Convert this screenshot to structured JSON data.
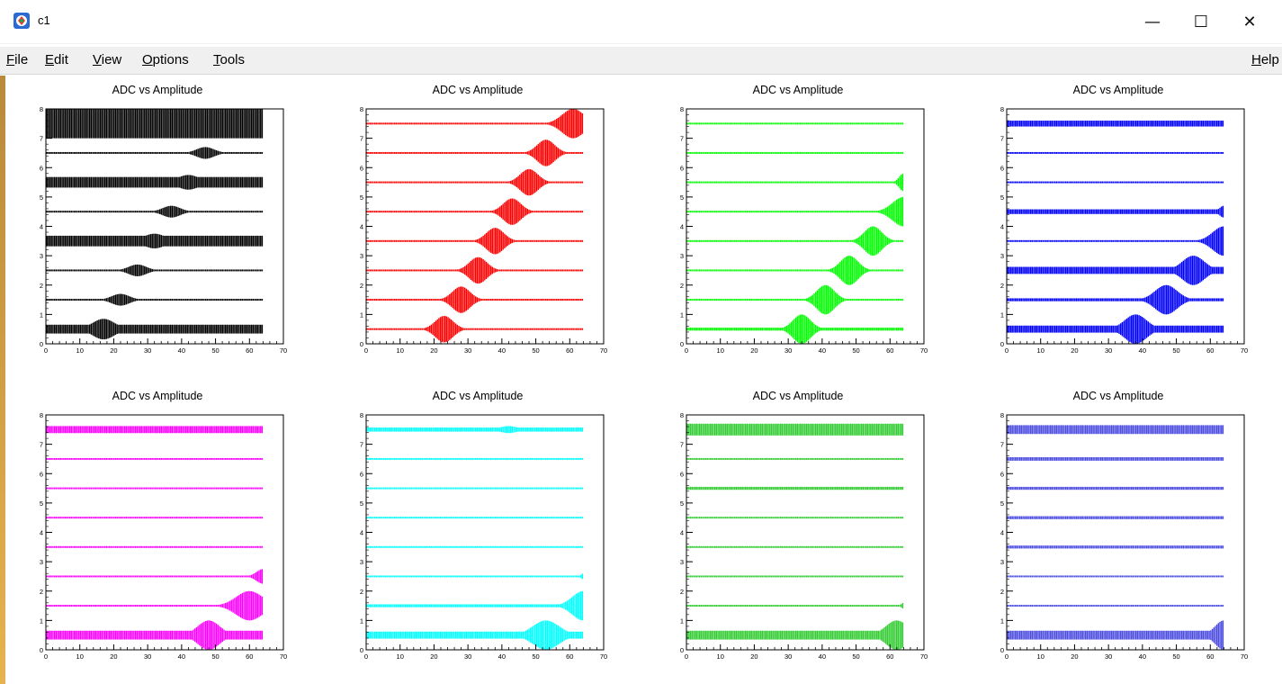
{
  "window": {
    "title": "c1",
    "icon": "root-app-icon",
    "controls": {
      "minimize": "—",
      "maximize": "☐",
      "close": "✕"
    }
  },
  "menu": {
    "left": [
      {
        "label": "File",
        "accel": "F"
      },
      {
        "label": "Edit",
        "accel": "E"
      },
      {
        "label": "View",
        "accel": "V"
      },
      {
        "label": "Options",
        "accel": "O"
      },
      {
        "label": "Tools",
        "accel": "T"
      }
    ],
    "right": {
      "label": "Help",
      "accel": "H"
    }
  },
  "colors": {
    "pad1": "#000000",
    "pad2": "#ff0000",
    "pad3": "#00ff00",
    "pad4": "#0000ff",
    "pad5": "#ff00ff",
    "pad6": "#00ffff",
    "pad7": "#33cc33",
    "pad8": "#4c4ce0"
  },
  "chart_data": [
    {
      "type": "scatter",
      "title": "ADC vs Amplitude",
      "xlim": [
        0,
        70
      ],
      "ylim": [
        0,
        8
      ],
      "xticks": [
        0,
        10,
        20,
        30,
        40,
        50,
        60,
        70
      ],
      "yticks": [
        0,
        1,
        2,
        3,
        4,
        5,
        6,
        7,
        8
      ],
      "color": "#000000",
      "x_end": 64,
      "bands": [
        {
          "y": 0.5,
          "hump_x": 17,
          "hump_w": 5,
          "hump_h": 0.35,
          "base_h": 0.15
        },
        {
          "y": 1.5,
          "hump_x": 22,
          "hump_w": 4,
          "hump_h": 0.2,
          "base_h": 0.03
        },
        {
          "y": 2.5,
          "hump_x": 27,
          "hump_w": 4,
          "hump_h": 0.2,
          "base_h": 0.03
        },
        {
          "y": 3.5,
          "hump_x": 32,
          "hump_w": 5,
          "hump_h": 0.25,
          "base_h": 0.18
        },
        {
          "y": 4.5,
          "hump_x": 37,
          "hump_w": 4,
          "hump_h": 0.2,
          "base_h": 0.03
        },
        {
          "y": 5.5,
          "hump_x": 42,
          "hump_w": 5,
          "hump_h": 0.25,
          "base_h": 0.18
        },
        {
          "y": 6.5,
          "hump_x": 47,
          "hump_w": 4,
          "hump_h": 0.2,
          "base_h": 0.03
        },
        {
          "y": 7.5,
          "hump_x": 50,
          "hump_w": 8,
          "hump_h": 0.5,
          "base_h": 0.5
        }
      ]
    },
    {
      "type": "scatter",
      "title": "ADC vs Amplitude",
      "xlim": [
        0,
        70
      ],
      "ylim": [
        0,
        8
      ],
      "xticks": [
        0,
        10,
        20,
        30,
        40,
        50,
        60,
        70
      ],
      "yticks": [
        0,
        1,
        2,
        3,
        4,
        5,
        6,
        7,
        8
      ],
      "color": "#ff0000",
      "x_end": 64,
      "bands": [
        {
          "y": 0.5,
          "hump_x": 23,
          "hump_w": 4,
          "hump_h": 0.45,
          "base_h": 0.03
        },
        {
          "y": 1.5,
          "hump_x": 28,
          "hump_w": 4,
          "hump_h": 0.45,
          "base_h": 0.03
        },
        {
          "y": 2.5,
          "hump_x": 33,
          "hump_w": 4,
          "hump_h": 0.45,
          "base_h": 0.03
        },
        {
          "y": 3.5,
          "hump_x": 38,
          "hump_w": 4,
          "hump_h": 0.45,
          "base_h": 0.03
        },
        {
          "y": 4.5,
          "hump_x": 43,
          "hump_w": 4,
          "hump_h": 0.45,
          "base_h": 0.03
        },
        {
          "y": 5.5,
          "hump_x": 48,
          "hump_w": 4,
          "hump_h": 0.45,
          "base_h": 0.03
        },
        {
          "y": 6.5,
          "hump_x": 53,
          "hump_w": 4,
          "hump_h": 0.45,
          "base_h": 0.03
        },
        {
          "y": 7.5,
          "hump_x": 61,
          "hump_w": 5,
          "hump_h": 0.5,
          "base_h": 0.03
        }
      ]
    },
    {
      "type": "scatter",
      "title": "ADC vs Amplitude",
      "xlim": [
        0,
        70
      ],
      "ylim": [
        0,
        8
      ],
      "xticks": [
        0,
        10,
        20,
        30,
        40,
        50,
        60,
        70
      ],
      "yticks": [
        0,
        1,
        2,
        3,
        4,
        5,
        6,
        7,
        8
      ],
      "color": "#00ff00",
      "x_end": 64,
      "bands": [
        {
          "y": 0.5,
          "hump_x": 34,
          "hump_w": 4,
          "hump_h": 0.5,
          "base_h": 0.05
        },
        {
          "y": 1.5,
          "hump_x": 41,
          "hump_w": 4,
          "hump_h": 0.5,
          "base_h": 0.03
        },
        {
          "y": 2.5,
          "hump_x": 48,
          "hump_w": 4,
          "hump_h": 0.5,
          "base_h": 0.03
        },
        {
          "y": 3.5,
          "hump_x": 55,
          "hump_w": 4,
          "hump_h": 0.5,
          "base_h": 0.03
        },
        {
          "y": 4.5,
          "hump_x": 64,
          "hump_w": 5,
          "hump_h": 0.5,
          "base_h": 0.03
        },
        {
          "y": 5.5,
          "hump_x": 64,
          "hump_w": 2,
          "hump_h": 0.3,
          "base_h": 0.03
        },
        {
          "y": 6.5,
          "hump_x": 0,
          "hump_w": 0,
          "hump_h": 0,
          "base_h": 0.03
        },
        {
          "y": 7.5,
          "hump_x": 0,
          "hump_w": 0,
          "hump_h": 0,
          "base_h": 0.03
        }
      ]
    },
    {
      "type": "scatter",
      "title": "ADC vs Amplitude",
      "xlim": [
        0,
        70
      ],
      "ylim": [
        0,
        8
      ],
      "xticks": [
        0,
        10,
        20,
        30,
        40,
        50,
        60,
        70
      ],
      "yticks": [
        0,
        1,
        2,
        3,
        4,
        5,
        6,
        7,
        8
      ],
      "color": "#0000ff",
      "x_end": 64,
      "bands": [
        {
          "y": 0.5,
          "hump_x": 38,
          "hump_w": 5,
          "hump_h": 0.5,
          "base_h": 0.12
        },
        {
          "y": 1.5,
          "hump_x": 47,
          "hump_w": 5,
          "hump_h": 0.5,
          "base_h": 0.05
        },
        {
          "y": 2.5,
          "hump_x": 55,
          "hump_w": 5,
          "hump_h": 0.5,
          "base_h": 0.12
        },
        {
          "y": 3.5,
          "hump_x": 64,
          "hump_w": 5,
          "hump_h": 0.5,
          "base_h": 0.03
        },
        {
          "y": 4.5,
          "hump_x": 64,
          "hump_w": 2,
          "hump_h": 0.2,
          "base_h": 0.08
        },
        {
          "y": 5.5,
          "hump_x": 0,
          "hump_w": 0,
          "hump_h": 0,
          "base_h": 0.03
        },
        {
          "y": 6.5,
          "hump_x": 0,
          "hump_w": 0,
          "hump_h": 0,
          "base_h": 0.03
        },
        {
          "y": 7.5,
          "hump_x": 0,
          "hump_w": 0,
          "hump_h": 0,
          "base_h": 0.1
        }
      ]
    },
    {
      "type": "scatter",
      "title": "ADC vs Amplitude",
      "xlim": [
        0,
        70
      ],
      "ylim": [
        0,
        8
      ],
      "xticks": [
        0,
        10,
        20,
        30,
        40,
        50,
        60,
        70
      ],
      "yticks": [
        0,
        1,
        2,
        3,
        4,
        5,
        6,
        7,
        8
      ],
      "color": "#ff00ff",
      "x_end": 64,
      "bands": [
        {
          "y": 0.5,
          "hump_x": 48,
          "hump_w": 5,
          "hump_h": 0.5,
          "base_h": 0.15
        },
        {
          "y": 1.5,
          "hump_x": 60,
          "hump_w": 6,
          "hump_h": 0.5,
          "base_h": 0.03
        },
        {
          "y": 2.5,
          "hump_x": 64,
          "hump_w": 3,
          "hump_h": 0.25,
          "base_h": 0.03
        },
        {
          "y": 3.5,
          "hump_x": 0,
          "hump_w": 0,
          "hump_h": 0,
          "base_h": 0.03
        },
        {
          "y": 4.5,
          "hump_x": 0,
          "hump_w": 0,
          "hump_h": 0,
          "base_h": 0.03
        },
        {
          "y": 5.5,
          "hump_x": 0,
          "hump_w": 0,
          "hump_h": 0,
          "base_h": 0.03
        },
        {
          "y": 6.5,
          "hump_x": 0,
          "hump_w": 0,
          "hump_h": 0,
          "base_h": 0.03
        },
        {
          "y": 7.5,
          "hump_x": 0,
          "hump_w": 0,
          "hump_h": 0,
          "base_h": 0.12
        }
      ]
    },
    {
      "type": "scatter",
      "title": "ADC vs Amplitude",
      "xlim": [
        0,
        70
      ],
      "ylim": [
        0,
        8
      ],
      "xticks": [
        0,
        10,
        20,
        30,
        40,
        50,
        60,
        70
      ],
      "yticks": [
        0,
        1,
        2,
        3,
        4,
        5,
        6,
        7,
        8
      ],
      "color": "#00ffff",
      "x_end": 64,
      "bands": [
        {
          "y": 0.5,
          "hump_x": 53,
          "hump_w": 6,
          "hump_h": 0.5,
          "base_h": 0.12
        },
        {
          "y": 1.5,
          "hump_x": 64,
          "hump_w": 5,
          "hump_h": 0.5,
          "base_h": 0.05
        },
        {
          "y": 2.5,
          "hump_x": 64,
          "hump_w": 1,
          "hump_h": 0.1,
          "base_h": 0.03
        },
        {
          "y": 3.5,
          "hump_x": 0,
          "hump_w": 0,
          "hump_h": 0,
          "base_h": 0.03
        },
        {
          "y": 4.5,
          "hump_x": 0,
          "hump_w": 0,
          "hump_h": 0,
          "base_h": 0.03
        },
        {
          "y": 5.5,
          "hump_x": 0,
          "hump_w": 0,
          "hump_h": 0,
          "base_h": 0.03
        },
        {
          "y": 6.5,
          "hump_x": 0,
          "hump_w": 0,
          "hump_h": 0,
          "base_h": 0.03
        },
        {
          "y": 7.5,
          "hump_x": 42,
          "hump_w": 4,
          "hump_h": 0.12,
          "base_h": 0.07
        }
      ]
    },
    {
      "type": "scatter",
      "title": "ADC vs Amplitude",
      "xlim": [
        0,
        70
      ],
      "ylim": [
        0,
        8
      ],
      "xticks": [
        0,
        10,
        20,
        30,
        40,
        50,
        60,
        70
      ],
      "yticks": [
        0,
        1,
        2,
        3,
        4,
        5,
        6,
        7,
        8
      ],
      "color": "#33cc33",
      "x_end": 64,
      "bands": [
        {
          "y": 0.5,
          "hump_x": 62,
          "hump_w": 5,
          "hump_h": 0.5,
          "base_h": 0.15
        },
        {
          "y": 1.5,
          "hump_x": 64,
          "hump_w": 1,
          "hump_h": 0.1,
          "base_h": 0.03
        },
        {
          "y": 2.5,
          "hump_x": 0,
          "hump_w": 0,
          "hump_h": 0,
          "base_h": 0.03
        },
        {
          "y": 3.5,
          "hump_x": 0,
          "hump_w": 0,
          "hump_h": 0,
          "base_h": 0.03
        },
        {
          "y": 4.5,
          "hump_x": 0,
          "hump_w": 0,
          "hump_h": 0,
          "base_h": 0.03
        },
        {
          "y": 5.5,
          "hump_x": 0,
          "hump_w": 0,
          "hump_h": 0,
          "base_h": 0.05
        },
        {
          "y": 6.5,
          "hump_x": 0,
          "hump_w": 0,
          "hump_h": 0,
          "base_h": 0.03
        },
        {
          "y": 7.5,
          "hump_x": 0,
          "hump_w": 0,
          "hump_h": 0,
          "base_h": 0.2
        }
      ]
    },
    {
      "type": "scatter",
      "title": "ADC vs Amplitude",
      "xlim": [
        0,
        70
      ],
      "ylim": [
        0,
        8
      ],
      "xticks": [
        0,
        10,
        20,
        30,
        40,
        50,
        60,
        70
      ],
      "yticks": [
        0,
        1,
        2,
        3,
        4,
        5,
        6,
        7,
        8
      ],
      "color": "#4c4ce0",
      "x_end": 64,
      "bands": [
        {
          "y": 0.5,
          "hump_x": 64,
          "hump_w": 4,
          "hump_h": 0.5,
          "base_h": 0.15
        },
        {
          "y": 1.5,
          "hump_x": 0,
          "hump_w": 0,
          "hump_h": 0,
          "base_h": 0.03
        },
        {
          "y": 2.5,
          "hump_x": 0,
          "hump_w": 0,
          "hump_h": 0,
          "base_h": 0.03
        },
        {
          "y": 3.5,
          "hump_x": 0,
          "hump_w": 0,
          "hump_h": 0,
          "base_h": 0.05
        },
        {
          "y": 4.5,
          "hump_x": 0,
          "hump_w": 0,
          "hump_h": 0,
          "base_h": 0.05
        },
        {
          "y": 5.5,
          "hump_x": 0,
          "hump_w": 0,
          "hump_h": 0,
          "base_h": 0.05
        },
        {
          "y": 6.5,
          "hump_x": 0,
          "hump_w": 0,
          "hump_h": 0,
          "base_h": 0.06
        },
        {
          "y": 7.5,
          "hump_x": 0,
          "hump_w": 0,
          "hump_h": 0,
          "base_h": 0.15
        }
      ]
    }
  ]
}
